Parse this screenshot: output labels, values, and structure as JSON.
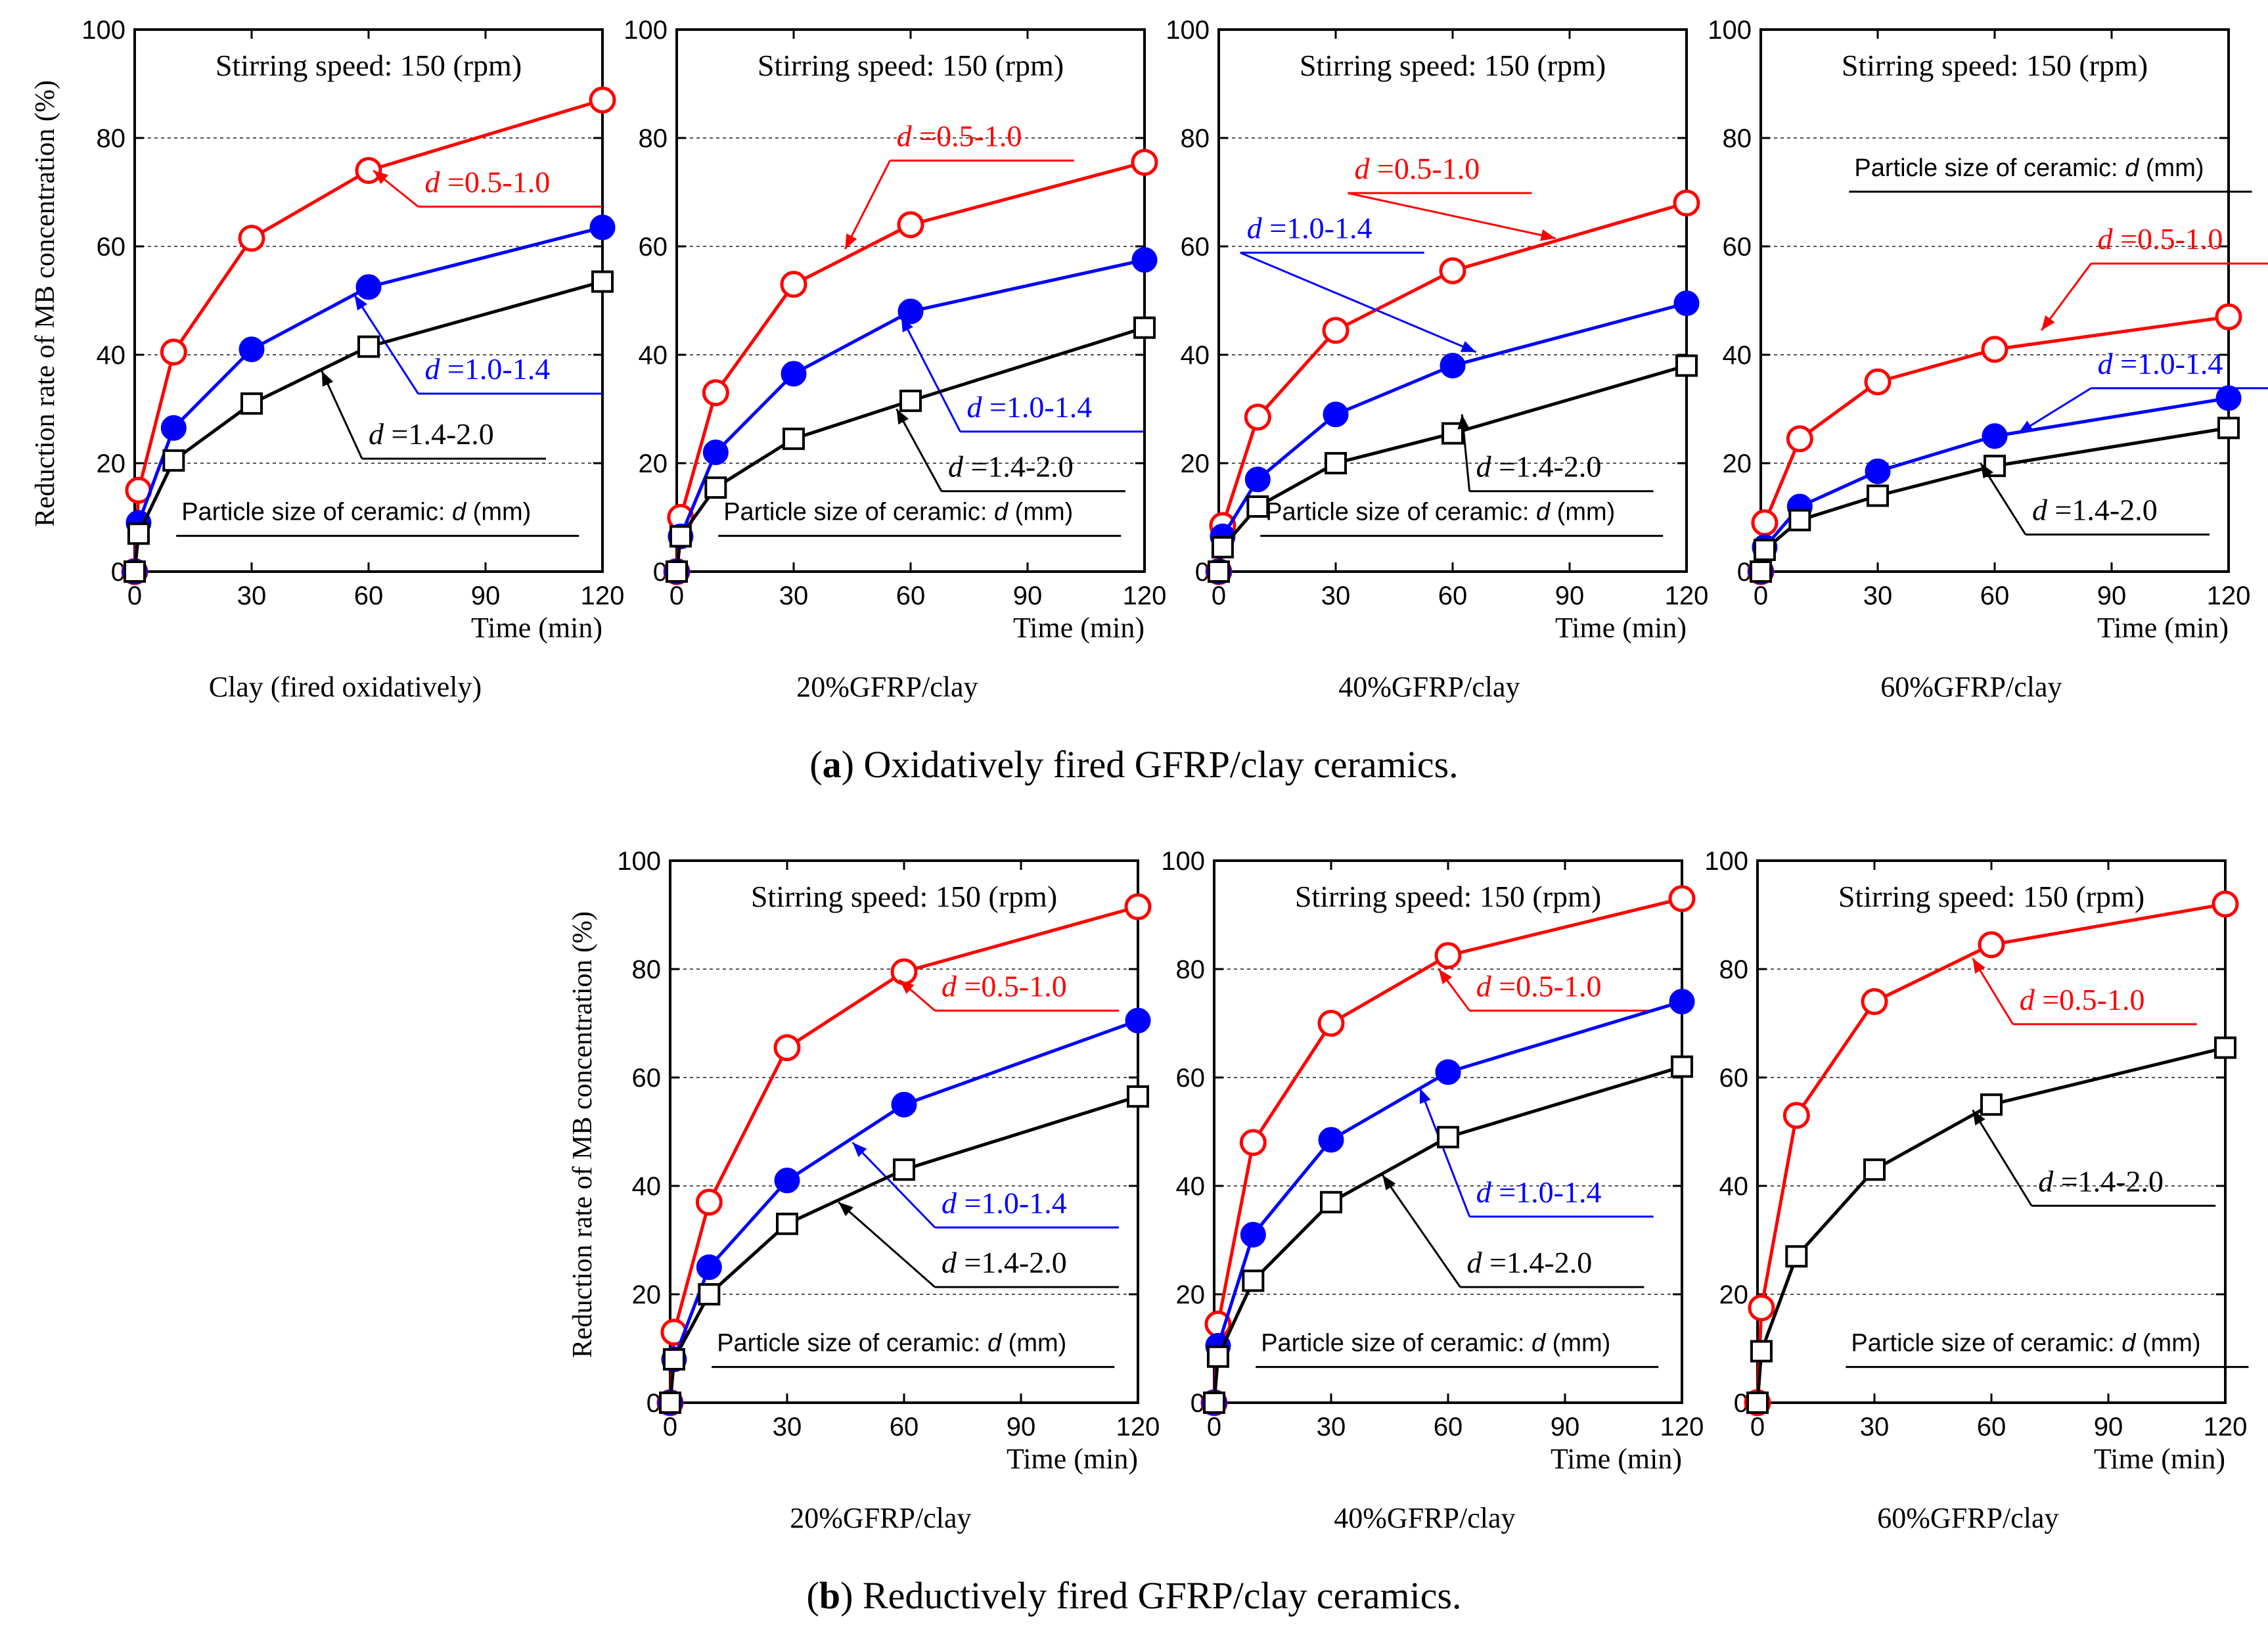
{
  "figure": {
    "ylabel": "Reduction rate of MB concentration  (%)",
    "xlabel": "Time (min)",
    "stirring_label": "Stirring speed: 150 (rpm)",
    "particle_label_prefix": "Particle size of ceramic: ",
    "particle_label_var": "d",
    "particle_label_unit": " (mm)",
    "caption_a_letter": "a",
    "caption_a_text": " Oxidatively fired GFRP/clay ceramics.",
    "caption_b_letter": "b",
    "caption_b_text": " Reductively fired GFRP/clay ceramics.",
    "series_labels": {
      "s05": "=0.5-1.0",
      "s10": "=1.0-1.4",
      "s14": "=1.4-2.0"
    },
    "colors": {
      "s05": "#ff0000",
      "s10": "#0000ff",
      "s14": "#000000"
    }
  },
  "chart_data": [
    {
      "type": "line",
      "title": "Clay (fired oxidatively)",
      "panel": "a",
      "x": [
        0,
        1,
        10,
        30,
        60,
        120
      ],
      "xticks": [
        0,
        30,
        60,
        90,
        120
      ],
      "xlim": [
        0,
        120
      ],
      "yticks": [
        0,
        20,
        40,
        60,
        80,
        100
      ],
      "ylim": [
        0,
        100
      ],
      "grid": "y-dashed",
      "series": [
        {
          "key": "s05",
          "values": [
            0,
            15,
            40.5,
            61.5,
            74,
            87
          ]
        },
        {
          "key": "s10",
          "values": [
            0,
            9,
            26.5,
            41,
            52.5,
            63.5
          ]
        },
        {
          "key": "s14",
          "values": [
            0,
            7,
            20.5,
            31,
            41.5,
            53.5
          ]
        }
      ]
    },
    {
      "type": "line",
      "title": "20%GFRP/clay",
      "panel": "a",
      "x": [
        0,
        1,
        10,
        30,
        60,
        120
      ],
      "xticks": [
        0,
        30,
        60,
        90,
        120
      ],
      "xlim": [
        0,
        120
      ],
      "yticks": [
        0,
        20,
        40,
        60,
        80,
        100
      ],
      "ylim": [
        0,
        100
      ],
      "grid": "y-dashed",
      "series": [
        {
          "key": "s05",
          "values": [
            0,
            10,
            33,
            53,
            64,
            75.5
          ]
        },
        {
          "key": "s10",
          "values": [
            0,
            6.5,
            22,
            36.5,
            48,
            57.5
          ]
        },
        {
          "key": "s14",
          "values": [
            0,
            6.5,
            15.5,
            24.5,
            31.5,
            45
          ]
        }
      ]
    },
    {
      "type": "line",
      "title": "40%GFRP/clay",
      "panel": "a",
      "x": [
        0,
        1,
        10,
        30,
        60,
        120
      ],
      "xticks": [
        0,
        30,
        60,
        90,
        120
      ],
      "xlim": [
        0,
        120
      ],
      "yticks": [
        0,
        20,
        40,
        60,
        80,
        100
      ],
      "ylim": [
        0,
        100
      ],
      "grid": "y-dashed",
      "series": [
        {
          "key": "s05",
          "values": [
            0,
            8.5,
            28.5,
            44.5,
            55.5,
            68
          ]
        },
        {
          "key": "s10",
          "values": [
            0,
            6.5,
            17,
            29,
            38,
            49.5
          ]
        },
        {
          "key": "s14",
          "values": [
            0,
            4.5,
            12,
            20,
            25.5,
            38
          ]
        }
      ]
    },
    {
      "type": "line",
      "title": "60%GFRP/clay",
      "panel": "a",
      "x": [
        0,
        1,
        10,
        30,
        60,
        120
      ],
      "xticks": [
        0,
        30,
        60,
        90,
        120
      ],
      "xlim": [
        0,
        120
      ],
      "yticks": [
        0,
        20,
        40,
        60,
        80,
        100
      ],
      "ylim": [
        0,
        100
      ],
      "grid": "y-dashed",
      "series": [
        {
          "key": "s05",
          "values": [
            0,
            9,
            24.5,
            35,
            41,
            47
          ]
        },
        {
          "key": "s10",
          "values": [
            0,
            4.5,
            12,
            18.5,
            25,
            32
          ]
        },
        {
          "key": "s14",
          "values": [
            0,
            4,
            9.5,
            14,
            19.5,
            26.5
          ]
        }
      ]
    },
    {
      "type": "line",
      "title": "20%GFRP/clay",
      "panel": "b",
      "x": [
        0,
        1,
        10,
        30,
        60,
        120
      ],
      "xticks": [
        0,
        30,
        60,
        90,
        120
      ],
      "xlim": [
        0,
        120
      ],
      "yticks": [
        0,
        20,
        40,
        60,
        80,
        100
      ],
      "ylim": [
        0,
        100
      ],
      "grid": "y-dashed",
      "series": [
        {
          "key": "s05",
          "values": [
            0,
            13,
            37,
            65.5,
            79.5,
            91.5
          ]
        },
        {
          "key": "s10",
          "values": [
            0,
            8,
            25,
            41,
            55,
            70.5
          ]
        },
        {
          "key": "s14",
          "values": [
            0,
            8,
            20,
            33,
            43,
            56.5
          ]
        }
      ]
    },
    {
      "type": "line",
      "title": "40%GFRP/clay",
      "panel": "b",
      "x": [
        0,
        1,
        10,
        30,
        60,
        120
      ],
      "xticks": [
        0,
        30,
        60,
        90,
        120
      ],
      "xlim": [
        0,
        120
      ],
      "yticks": [
        0,
        20,
        40,
        60,
        80,
        100
      ],
      "ylim": [
        0,
        100
      ],
      "grid": "y-dashed",
      "series": [
        {
          "key": "s05",
          "values": [
            0,
            14.5,
            48,
            70,
            82.5,
            93
          ]
        },
        {
          "key": "s10",
          "values": [
            0,
            10.5,
            31,
            48.5,
            61,
            74
          ]
        },
        {
          "key": "s14",
          "values": [
            0,
            8.5,
            22.5,
            37,
            49,
            62
          ]
        }
      ]
    },
    {
      "type": "line",
      "title": "60%GFRP/clay",
      "panel": "b",
      "x": [
        0,
        1,
        10,
        30,
        60,
        120
      ],
      "xticks": [
        0,
        30,
        60,
        90,
        120
      ],
      "xlim": [
        0,
        120
      ],
      "yticks": [
        0,
        20,
        40,
        60,
        80,
        100
      ],
      "ylim": [
        0,
        100
      ],
      "grid": "y-dashed",
      "series": [
        {
          "key": "s05",
          "values": [
            0,
            17.5,
            53,
            74,
            84.5,
            92
          ]
        },
        {
          "key": "s14",
          "values": [
            0,
            9.5,
            27,
            43,
            55,
            65.5
          ]
        }
      ]
    }
  ]
}
